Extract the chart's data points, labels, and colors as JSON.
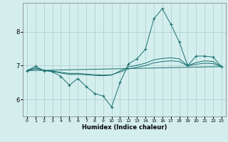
{
  "xlabel": "Humidex (Indice chaleur)",
  "background_color": "#d4eeee",
  "grid_color": "#aacccc",
  "line_color": "#1a7070",
  "xlim": [
    -0.5,
    23.5
  ],
  "ylim": [
    5.5,
    8.85
  ],
  "yticks": [
    6,
    7,
    8
  ],
  "xticks": [
    0,
    1,
    2,
    3,
    4,
    5,
    6,
    7,
    8,
    9,
    10,
    11,
    12,
    13,
    14,
    15,
    16,
    17,
    18,
    19,
    20,
    21,
    22,
    23
  ],
  "main_curve_x": [
    0,
    1,
    2,
    3,
    4,
    5,
    6,
    7,
    8,
    9,
    10,
    11,
    12,
    13,
    14,
    15,
    16,
    17,
    18,
    19,
    20,
    21,
    22,
    23
  ],
  "main_curve_y": [
    6.85,
    6.98,
    6.85,
    6.82,
    6.68,
    6.42,
    6.62,
    6.38,
    6.18,
    6.1,
    5.78,
    6.5,
    7.05,
    7.2,
    7.48,
    8.38,
    8.68,
    8.22,
    7.7,
    7.0,
    7.28,
    7.28,
    7.25,
    6.97
  ],
  "line2_x": [
    0,
    1,
    2,
    3,
    4,
    5,
    6,
    7,
    8,
    9,
    10,
    11,
    12,
    13,
    14,
    15,
    16,
    17,
    18,
    19,
    20,
    21,
    22,
    23
  ],
  "line2_y": [
    6.85,
    6.93,
    6.86,
    6.83,
    6.78,
    6.74,
    6.74,
    6.73,
    6.71,
    6.7,
    6.72,
    6.84,
    6.96,
    7.01,
    7.07,
    7.17,
    7.21,
    7.23,
    7.2,
    7.0,
    7.09,
    7.14,
    7.12,
    6.97
  ],
  "line3_x": [
    0,
    1,
    2,
    3,
    4,
    5,
    6,
    7,
    8,
    9,
    10,
    11,
    12,
    13,
    14,
    15,
    16,
    17,
    18,
    19,
    20,
    21,
    22,
    23
  ],
  "line3_y": [
    6.85,
    6.9,
    6.86,
    6.84,
    6.8,
    6.77,
    6.77,
    6.75,
    6.73,
    6.72,
    6.73,
    6.81,
    6.9,
    6.95,
    7.0,
    7.08,
    7.12,
    7.14,
    7.12,
    6.99,
    7.04,
    7.07,
    7.06,
    6.97
  ],
  "line4_x": [
    0,
    23
  ],
  "line4_y": [
    6.85,
    6.97
  ]
}
